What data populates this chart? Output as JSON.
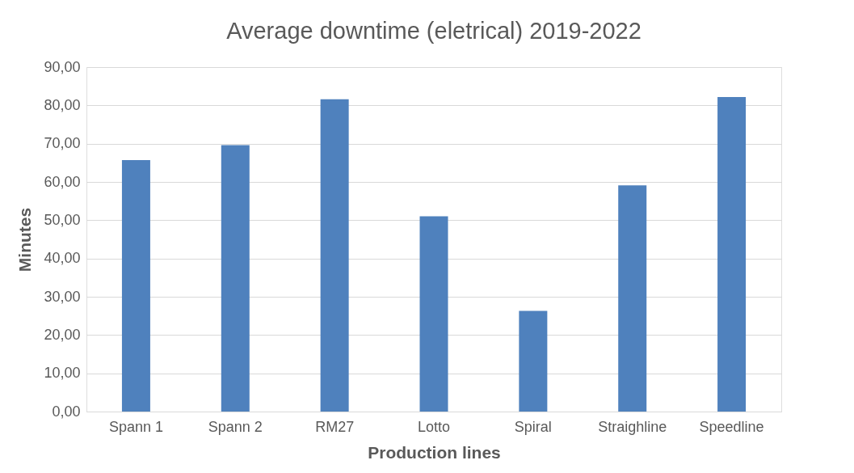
{
  "chart_data": {
    "type": "bar",
    "title": "Average downtime (eletrical) 2019-2022",
    "xlabel": "Production lines",
    "ylabel": "Minutes",
    "categories": [
      "Spann 1",
      "Spann 2",
      "RM27",
      "Lotto",
      "Spiral",
      "Straighline",
      "Speedline"
    ],
    "series": [
      {
        "color": "#4f81bd",
        "values": [
          65.7,
          69.6,
          81.6,
          51.0,
          26.3,
          59.1,
          82.2
        ]
      }
    ],
    "ylim": [
      0,
      90
    ],
    "yticks": [
      {
        "value": 0,
        "label": "0,00"
      },
      {
        "value": 10,
        "label": "10,00"
      },
      {
        "value": 20,
        "label": "20,00"
      },
      {
        "value": 30,
        "label": "30,00"
      },
      {
        "value": 40,
        "label": "40,00"
      },
      {
        "value": 50,
        "label": "50,00"
      },
      {
        "value": 60,
        "label": "60,00"
      },
      {
        "value": 70,
        "label": "70,00"
      },
      {
        "value": 80,
        "label": "80,00"
      },
      {
        "value": 90,
        "label": "90,00"
      }
    ],
    "grid": "y",
    "legend": false
  }
}
